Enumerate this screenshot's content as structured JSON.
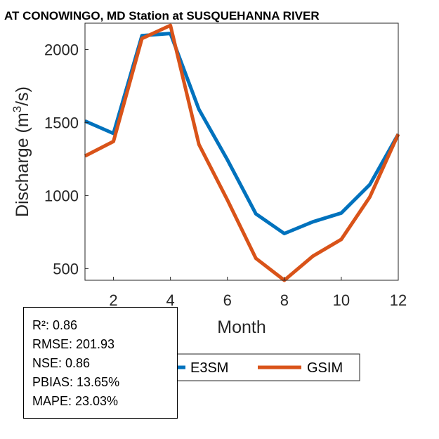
{
  "chart_data": {
    "type": "line",
    "title": "AT CONOWINGO, MD  Station at  SUSQUEHANNA RIVER",
    "xlabel": "Month",
    "ylabel_main": "Discharge (m",
    "ylabel_sup": "3",
    "ylabel_tail": "/s)",
    "xlim": [
      1,
      12
    ],
    "ylim": [
      420,
      2180
    ],
    "x_ticks": [
      2,
      4,
      6,
      8,
      10,
      12
    ],
    "y_ticks": [
      500,
      1000,
      1500,
      2000
    ],
    "x": [
      1,
      2,
      3,
      4,
      5,
      6,
      7,
      8,
      9,
      10,
      11,
      12
    ],
    "series": [
      {
        "name": "E3SM",
        "color": "#0072BD",
        "values": [
          1510,
          1425,
          2095,
          2110,
          1590,
          1245,
          875,
          740,
          820,
          880,
          1075,
          1420
        ]
      },
      {
        "name": "GSIM",
        "color": "#D95319",
        "values": [
          1270,
          1370,
          2075,
          2165,
          1350,
          970,
          570,
          420,
          585,
          700,
          990,
          1420
        ]
      }
    ],
    "grid": false,
    "legend_placement": "bottom-center",
    "stats": [
      "R²: 0.86",
      "RMSE: 201.93",
      "NSE: 0.86",
      "PBIAS: 13.65%",
      "MAPE: 23.03%"
    ]
  }
}
